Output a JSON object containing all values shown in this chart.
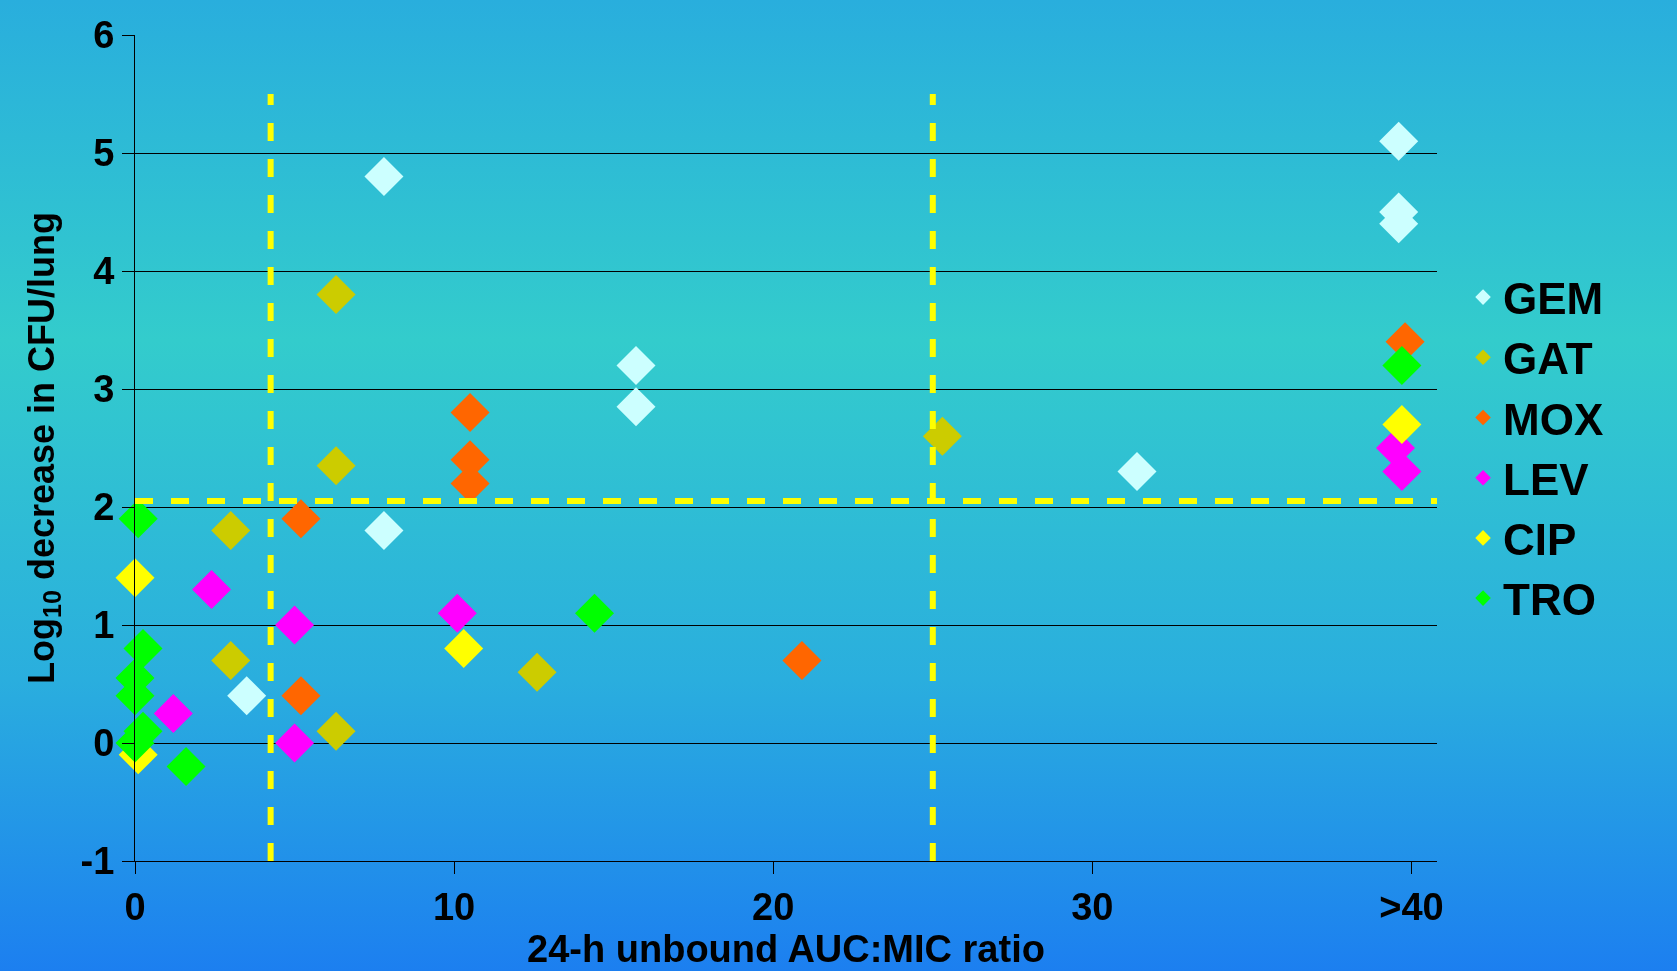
{
  "chart_data": {
    "type": "scatter",
    "xlabel": "24-h unbound AUC:MIC ratio",
    "ylabel": "Log$_{10}$ decrease in CFU/lung",
    "marker": "diamond",
    "grid": "y",
    "legend": "right",
    "xlim": [
      0,
      40.8
    ],
    "xticks": [
      0,
      10,
      20,
      30,
      {
        "value": 40,
        "label": ">40"
      }
    ],
    "ylim": [
      -1,
      6
    ],
    "yticks": [
      -1,
      0,
      1,
      2,
      3,
      4,
      5,
      6
    ],
    "series": [
      {
        "name": "GEM",
        "color": "#ccffff",
        "x": [
          7.8,
          15.7,
          15.7,
          7.8,
          3.5,
          31.4,
          39.6,
          39.6,
          39.6
        ],
        "values": [
          4.8,
          3.2,
          2.85,
          1.8,
          0.4,
          2.3,
          5.1,
          4.5,
          4.4
        ]
      },
      {
        "name": "GAT",
        "color": "#cccc00",
        "x": [
          6.3,
          6.3,
          3.0,
          3.0,
          6.3,
          12.6,
          25.3
        ],
        "values": [
          3.8,
          2.35,
          1.8,
          0.7,
          0.1,
          0.6,
          2.6
        ]
      },
      {
        "name": "MOX",
        "color": "#ff6600",
        "x": [
          10.5,
          10.5,
          10.5,
          5.2,
          5.2,
          20.9,
          39.8
        ],
        "values": [
          2.8,
          2.4,
          2.2,
          1.9,
          0.4,
          0.7,
          3.4
        ]
      },
      {
        "name": "LEV",
        "color": "#ff00ff",
        "x": [
          2.4,
          5.0,
          10.1,
          1.2,
          5.0,
          39.5,
          39.7
        ],
        "values": [
          1.3,
          1.0,
          1.1,
          0.25,
          0.0,
          2.5,
          2.3
        ]
      },
      {
        "name": "CIP",
        "color": "#ffff00",
        "x": [
          0,
          10.3,
          39.7,
          0.1
        ],
        "values": [
          1.4,
          0.8,
          2.7,
          -0.1
        ]
      },
      {
        "name": "TRO",
        "color": "#00ff00",
        "x": [
          0.1,
          0.25,
          0,
          0,
          0.25,
          0,
          1.6,
          14.4,
          39.7
        ],
        "values": [
          1.9,
          0.8,
          0.55,
          0.4,
          0.1,
          0.0,
          -0.2,
          1.1,
          3.2
        ]
      }
    ],
    "ref_lines": [
      {
        "axis": "x",
        "value": 4.25,
        "color": "#ffff00",
        "line_style": "dashed"
      },
      {
        "axis": "x",
        "value": 25,
        "color": "#ffff00",
        "line_style": "dashed"
      },
      {
        "axis": "y",
        "value": 2.05,
        "color": "#ffff00",
        "line_style": "dashed"
      }
    ]
  }
}
